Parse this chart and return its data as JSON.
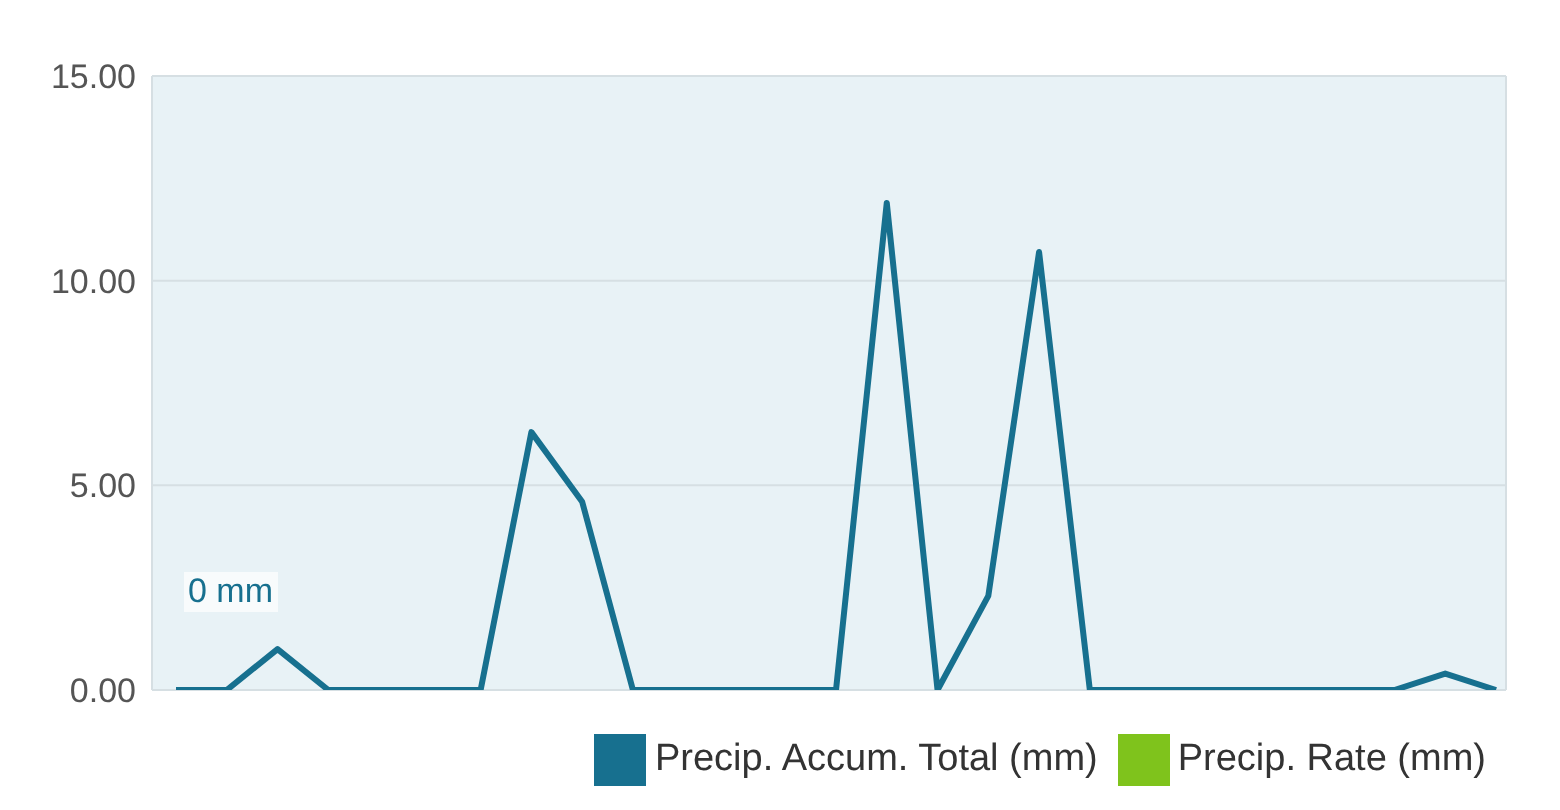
{
  "chart_data": {
    "type": "line",
    "categories": [
      null,
      null,
      null,
      null,
      null,
      null,
      null,
      null,
      null,
      null,
      null,
      null,
      null,
      null,
      null,
      null,
      null,
      null,
      null,
      null,
      null,
      null,
      null,
      null,
      null,
      null,
      null
    ],
    "series": [
      {
        "name": "Precip. Accum. Total (mm)",
        "color": "#17708f",
        "values": [
          0,
          0,
          1.0,
          0,
          0,
          0,
          0,
          6.3,
          4.6,
          0,
          0,
          0,
          0,
          0,
          11.9,
          0,
          2.3,
          10.7,
          0,
          0,
          0,
          0,
          0,
          0,
          0,
          0.4,
          0
        ]
      },
      {
        "name": "Precip. Rate (mm)",
        "color": "#7fc31c",
        "values": [
          null,
          null,
          null,
          null,
          null,
          null,
          null,
          null,
          null,
          null,
          null,
          null,
          null,
          null,
          null,
          null,
          null,
          null,
          null,
          null,
          null,
          null,
          null,
          null,
          null,
          null,
          null
        ]
      }
    ],
    "ylim": [
      0,
      15
    ],
    "yticks": [
      {
        "value": 0,
        "label": "0.00"
      },
      {
        "value": 5,
        "label": "5.00"
      },
      {
        "value": 10,
        "label": "10.00"
      },
      {
        "value": 15,
        "label": "15.00"
      }
    ],
    "grid": true,
    "legend": "bottom right",
    "marker": "none",
    "line_style": "solid",
    "annotations": [
      "0 mm"
    ]
  }
}
